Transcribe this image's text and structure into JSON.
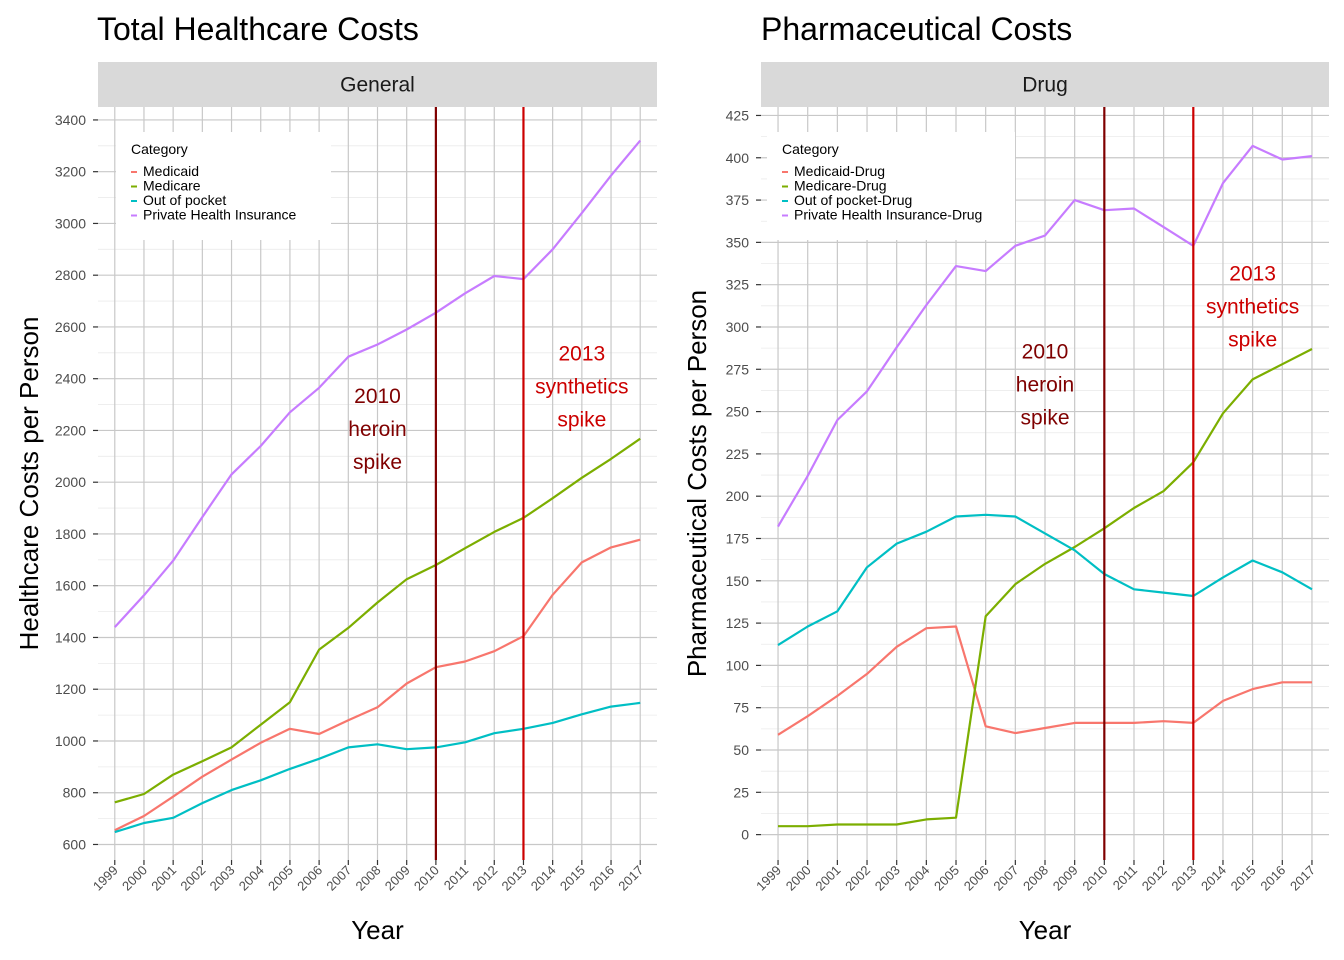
{
  "colors": {
    "medicaid": "#F8766D",
    "medicare": "#7CAE00",
    "out_of_pocket": "#00BFC4",
    "private": "#C77CFF",
    "heroin_line": "#7F0000",
    "synthetics_line": "#CC0000",
    "strip_bg": "#D9D9D9",
    "grid": "#C8C8C8"
  },
  "chart_data": [
    {
      "type": "line",
      "title": "Total Healthcare Costs",
      "facet_label": "General",
      "xlabel": "Year",
      "ylabel": "Healthcare Costs per Person",
      "legend_title": "Category",
      "legend_position": "top-left",
      "grid": true,
      "x": [
        "1999",
        "2000",
        "2001",
        "2002",
        "2003",
        "2004",
        "2005",
        "2006",
        "2007",
        "2008",
        "2009",
        "2010",
        "2011",
        "2012",
        "2013",
        "2014",
        "2015",
        "2016",
        "2017"
      ],
      "yticks": [
        600,
        800,
        1000,
        1200,
        1400,
        1600,
        1800,
        2000,
        2200,
        2400,
        2600,
        2800,
        3000,
        3200,
        3400
      ],
      "ylim": [
        540,
        3450
      ],
      "series": [
        {
          "name": "Medicaid",
          "color_key": "medicaid",
          "values": [
            655,
            710,
            785,
            862,
            928,
            993,
            1047,
            1027,
            1080,
            1130,
            1222,
            1285,
            1307,
            1347,
            1405,
            1565,
            1690,
            1748,
            1778
          ]
        },
        {
          "name": "Medicare",
          "color_key": "medicare",
          "values": [
            763,
            795,
            870,
            922,
            975,
            1063,
            1150,
            1353,
            1437,
            1535,
            1625,
            1680,
            1745,
            1808,
            1862,
            1938,
            2017,
            2090,
            2168
          ]
        },
        {
          "name": "Out of pocket",
          "color_key": "out_of_pocket",
          "values": [
            648,
            683,
            703,
            760,
            810,
            848,
            892,
            931,
            975,
            987,
            968,
            975,
            995,
            1030,
            1047,
            1070,
            1103,
            1133,
            1147
          ]
        },
        {
          "name": "Private Health Insurance",
          "color_key": "private",
          "values": [
            1440,
            1563,
            1697,
            1865,
            2030,
            2140,
            2270,
            2365,
            2485,
            2532,
            2590,
            2655,
            2730,
            2797,
            2785,
            2900,
            3040,
            3185,
            3320
          ]
        }
      ],
      "vlines": [
        {
          "x": "2010",
          "color_key": "heroin_line"
        },
        {
          "x": "2013",
          "color_key": "synthetics_line"
        }
      ],
      "annotations": [
        {
          "lines": [
            "2010",
            "heroin",
            "spike"
          ],
          "x": "2008",
          "y": 2205,
          "color_key": "heroin_line"
        },
        {
          "lines": [
            "2013",
            "synthetics",
            "spike"
          ],
          "x": "2015",
          "y": 2370,
          "color_key": "synthetics_line"
        }
      ]
    },
    {
      "type": "line",
      "title": "Pharmaceutical Costs",
      "facet_label": "Drug",
      "xlabel": "Year",
      "ylabel": "Pharmaceutical Costs per Person",
      "legend_title": "Category",
      "legend_position": "top-left",
      "grid": true,
      "x": [
        "1999",
        "2000",
        "2001",
        "2002",
        "2003",
        "2004",
        "2005",
        "2006",
        "2007",
        "2008",
        "2009",
        "2010",
        "2011",
        "2012",
        "2013",
        "2014",
        "2015",
        "2016",
        "2017"
      ],
      "yticks": [
        0,
        25,
        50,
        75,
        100,
        125,
        150,
        175,
        200,
        225,
        250,
        275,
        300,
        325,
        350,
        375,
        400,
        425
      ],
      "ylim": [
        -15,
        430
      ],
      "series": [
        {
          "name": "Medicaid-Drug",
          "color_key": "medicaid",
          "values": [
            59,
            70,
            82,
            95,
            111,
            122,
            123,
            64,
            60,
            63,
            66,
            66,
            66,
            67,
            66,
            79,
            86,
            90,
            90
          ]
        },
        {
          "name": "Medicare-Drug",
          "color_key": "medicare",
          "values": [
            5,
            5,
            6,
            6,
            6,
            9,
            10,
            129,
            148,
            160,
            170,
            181,
            193,
            203,
            220,
            249,
            269,
            278,
            287
          ]
        },
        {
          "name": "Out of pocket-Drug",
          "color_key": "out_of_pocket",
          "values": [
            112,
            123,
            132,
            158,
            172,
            179,
            188,
            189,
            188,
            178,
            168,
            154,
            145,
            143,
            141,
            152,
            162,
            155,
            145
          ]
        },
        {
          "name": "Private Health Insurance-Drug",
          "color_key": "private",
          "values": [
            182,
            212,
            245,
            262,
            288,
            313,
            336,
            333,
            348,
            354,
            375,
            369,
            370,
            359,
            348,
            385,
            407,
            399,
            401
          ]
        }
      ],
      "vlines": [
        {
          "x": "2010",
          "color_key": "heroin_line"
        },
        {
          "x": "2013",
          "color_key": "synthetics_line"
        }
      ],
      "annotations": [
        {
          "lines": [
            "2010",
            "heroin",
            "spike"
          ],
          "x": "2008",
          "y": 266,
          "color_key": "heroin_line"
        },
        {
          "lines": [
            "2013",
            "synthetics",
            "spike"
          ],
          "x": "2015",
          "y": 312,
          "color_key": "synthetics_line"
        }
      ]
    }
  ]
}
